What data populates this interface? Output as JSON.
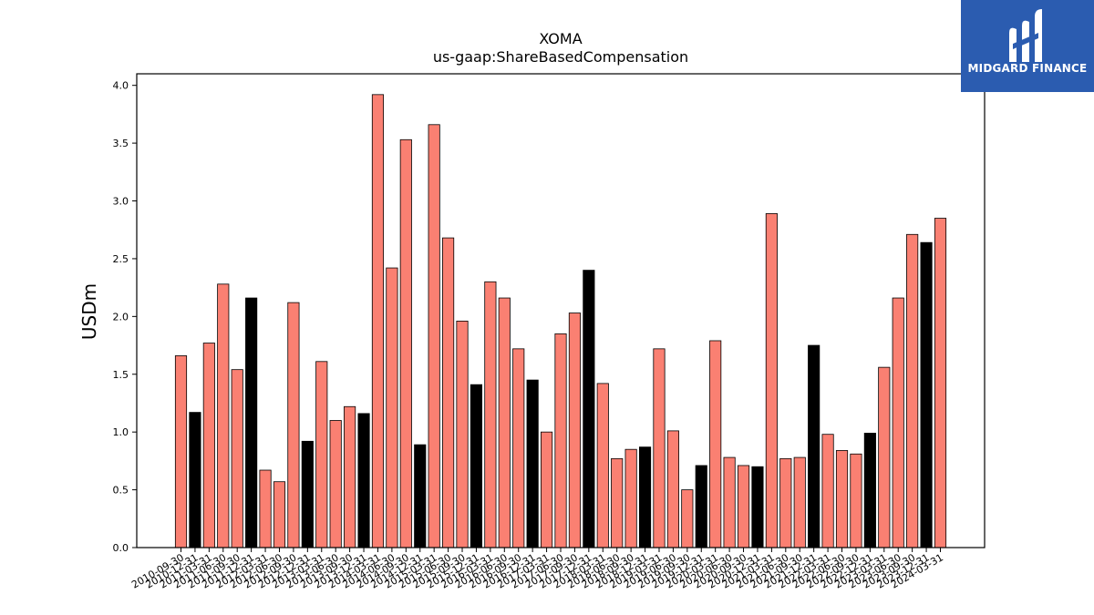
{
  "chart_data": {
    "type": "bar",
    "title": "XOMA",
    "subtitle": "us-gaap:ShareBasedCompensation",
    "xlabel": "",
    "ylabel": "USDm",
    "ylim": [
      0,
      4.1
    ],
    "yticks": [
      "0.0",
      "0.5",
      "1.0",
      "1.5",
      "2.0",
      "2.5",
      "3.0",
      "3.5",
      "4.0"
    ],
    "grid": false,
    "legend": "none",
    "categories": [
      "2010-09-30",
      "2010-12-31",
      "2011-03-31",
      "2011-06-30",
      "2011-09-30",
      "2011-12-31",
      "2012-03-31",
      "2012-06-30",
      "2012-09-30",
      "2012-12-31",
      "2013-03-31",
      "2013-06-30",
      "2013-09-30",
      "2013-12-31",
      "2014-03-31",
      "2014-06-30",
      "2014-09-30",
      "2014-12-31",
      "2015-03-31",
      "2015-06-30",
      "2015-09-30",
      "2015-12-31",
      "2016-03-31",
      "2016-06-30",
      "2016-09-30",
      "2016-12-31",
      "2017-03-31",
      "2017-06-30",
      "2017-09-30",
      "2017-12-31",
      "2018-03-31",
      "2018-06-30",
      "2018-09-30",
      "2018-12-31",
      "2019-03-31",
      "2019-06-30",
      "2019-09-30",
      "2019-12-31",
      "2020-03-31",
      "2020-06-30",
      "2020-09-30",
      "2020-12-31",
      "2021-03-31",
      "2021-06-30",
      "2021-09-30",
      "2021-12-31",
      "2022-03-31",
      "2022-06-30",
      "2022-09-30",
      "2022-12-31",
      "2023-03-31",
      "2023-06-30",
      "2023-09-30",
      "2023-12-31",
      "2024-03-31"
    ],
    "values": [
      1.66,
      1.17,
      1.77,
      2.28,
      1.54,
      2.16,
      0.67,
      0.57,
      2.12,
      0.92,
      1.61,
      1.1,
      1.22,
      1.16,
      3.92,
      2.42,
      3.53,
      0.89,
      3.66,
      2.68,
      1.96,
      1.41,
      2.3,
      2.16,
      1.72,
      1.45,
      1.0,
      1.85,
      2.03,
      2.4,
      1.42,
      0.77,
      0.85,
      0.87,
      1.72,
      1.01,
      0.5,
      0.71,
      1.79,
      0.78,
      0.71,
      0.7,
      2.89,
      0.77,
      0.78,
      1.75,
      0.98,
      0.84,
      0.81,
      0.99,
      1.56,
      2.16,
      2.71,
      2.64,
      2.85
    ],
    "highlight": [
      false,
      true,
      false,
      false,
      false,
      true,
      false,
      false,
      false,
      true,
      false,
      false,
      false,
      true,
      false,
      false,
      false,
      true,
      false,
      false,
      false,
      true,
      false,
      false,
      false,
      true,
      false,
      false,
      false,
      true,
      false,
      false,
      false,
      true,
      false,
      false,
      false,
      true,
      false,
      false,
      false,
      true,
      false,
      false,
      false,
      true,
      false,
      false,
      false,
      true,
      false,
      false,
      false,
      true,
      false
    ],
    "colors": {
      "bar": "#fa8072",
      "highlight": "#000000",
      "edge": "#000000"
    }
  },
  "logo": {
    "text": "MIDGARD FINANCE",
    "icon": "midgard-logo-icon",
    "color": "#2b5cb0"
  }
}
